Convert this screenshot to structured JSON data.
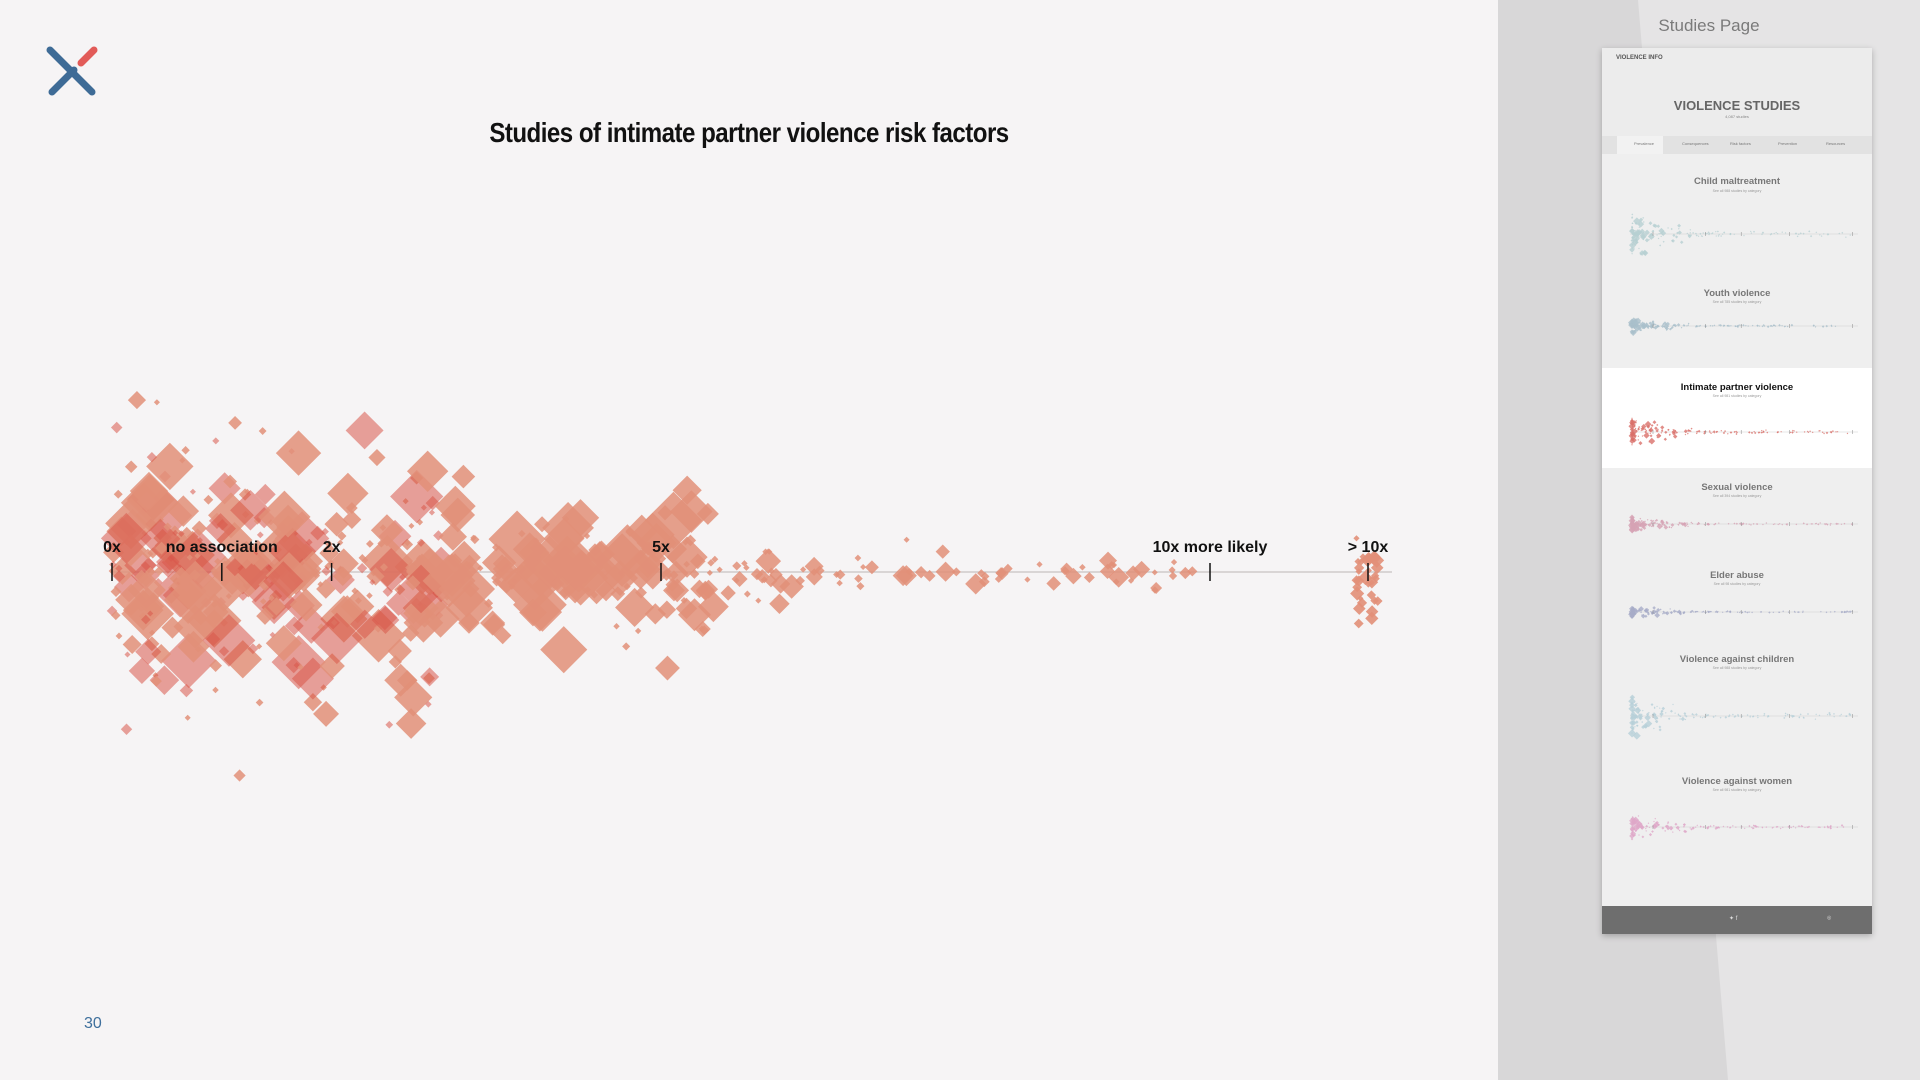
{
  "slide": {
    "title": "Studies of intimate partner violence risk factors",
    "page_number": "30",
    "colors": {
      "marker": "#e28f78",
      "marker_dense": "#d9584a",
      "axis": "#c8c2c2",
      "background": "#f6f4f5",
      "logo_blue": "#3e6b96",
      "logo_red": "#e25b58"
    }
  },
  "chart_data": {
    "type": "scatter",
    "title": "Studies of intimate partner violence risk factors",
    "xlabel": "",
    "ylabel": "",
    "x_scale": "odds ratio (linear, 0x to 10x, plus > 10x bin)",
    "tick_labels": [
      {
        "label": "0x",
        "value": 0
      },
      {
        "label": "no association",
        "value": 1
      },
      {
        "label": "2x",
        "value": 2
      },
      {
        "label": "5x",
        "value": 5
      },
      {
        "label": "10x more likely",
        "value": 10
      },
      {
        "label": "> 10x",
        "value": "gt10"
      }
    ],
    "marker": "diamond",
    "description_of_density": [
      {
        "range": [
          0,
          1.5
        ],
        "density": "very high",
        "max_size": "large"
      },
      {
        "range": [
          1.5,
          3
        ],
        "density": "high",
        "max_size": "large"
      },
      {
        "range": [
          3,
          5.5
        ],
        "density": "medium",
        "max_size": "large"
      },
      {
        "range": [
          5.5,
          6.2
        ],
        "density": "low",
        "max_size": "medium"
      },
      {
        "range": [
          6.2,
          10
        ],
        "density": "sparse",
        "max_size": "small"
      },
      {
        "range": [
          "gt10"
        ],
        "density": "low",
        "max_size": "small"
      }
    ],
    "legend": "none",
    "grid": false
  },
  "sidebar": {
    "title": "Studies Page",
    "thumbnail": {
      "site_name": "VIOLENCE INFO",
      "hero_title": "VIOLENCE STUDIES",
      "hero_subtitle": "4,087 studies",
      "tabs": [
        "Prevalence",
        "Consequences",
        "Risk factors",
        "Prevention",
        "Resources"
      ],
      "sections": [
        {
          "title": "Child maltreatment",
          "subtitle": "See all 988 studies by category",
          "color": "#b7cfd2",
          "highlight": false
        },
        {
          "title": "Youth violence",
          "subtitle": "See all 785 studies by category",
          "color": "#a9bfca",
          "highlight": false
        },
        {
          "title": "Intimate partner violence",
          "subtitle": "See all 981 studies by category",
          "color": "#d9716a",
          "highlight": true
        },
        {
          "title": "Sexual violence",
          "subtitle": "See all 394 studies by category",
          "color": "#d6a2b4",
          "highlight": false
        },
        {
          "title": "Elder abuse",
          "subtitle": "See all 98 studies by category",
          "color": "#a8adc8",
          "highlight": false
        },
        {
          "title": "Violence against children",
          "subtitle": "See all 988 studies by category",
          "color": "#b7cfd8",
          "highlight": false
        },
        {
          "title": "Violence against women",
          "subtitle": "See all 981 studies by category",
          "color": "#dfa8c8",
          "highlight": false
        }
      ]
    }
  }
}
